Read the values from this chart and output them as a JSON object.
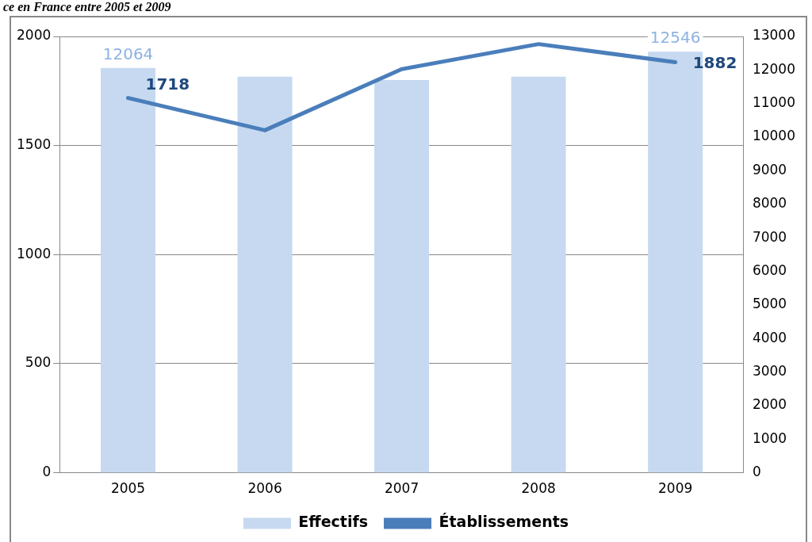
{
  "chart_data": {
    "type": "bar",
    "title": "ce en France entre 2005 et 2009",
    "categories": [
      "2005",
      "2006",
      "2007",
      "2008",
      "2009"
    ],
    "series": [
      {
        "name": "Effectifs",
        "axis": "y2",
        "color": "#c6d9f0",
        "values": [
          12064,
          11800,
          11700,
          11800,
          12546
        ],
        "value_labels": [
          "12064",
          null,
          null,
          null,
          "12546"
        ]
      },
      {
        "name": "Établissements",
        "type": "line",
        "color": "#4a7ebb",
        "values": [
          1718,
          1570,
          1850,
          1965,
          1882
        ],
        "value_labels": [
          "1718",
          null,
          null,
          null,
          "1882"
        ]
      }
    ],
    "ylim": [
      0,
      2000
    ],
    "yticks": [
      0,
      500,
      1000,
      1500,
      2000
    ],
    "y2lim": [
      0,
      13000
    ],
    "y2ticks": [
      0,
      1000,
      2000,
      3000,
      4000,
      5000,
      6000,
      7000,
      8000,
      9000,
      10000,
      11000,
      12000,
      13000
    ],
    "grid": "y",
    "legend": "bottom",
    "marker": "none",
    "line_style": "solid"
  }
}
